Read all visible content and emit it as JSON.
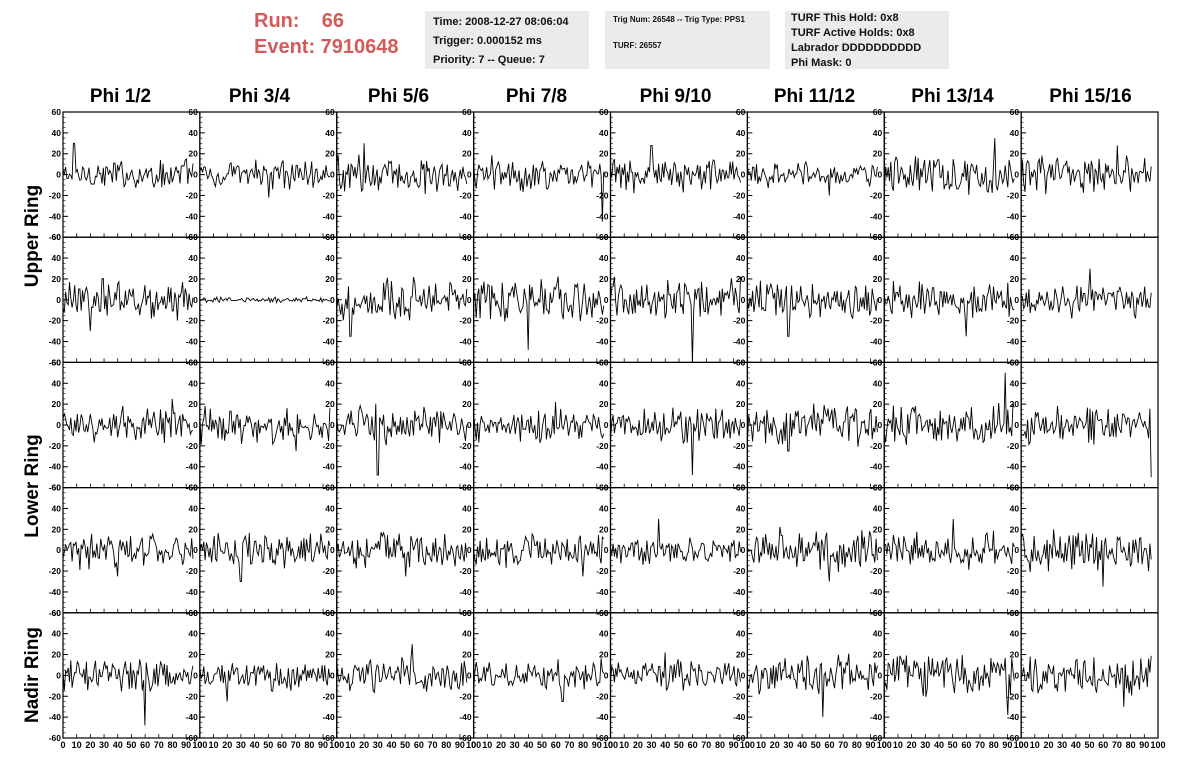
{
  "header": {
    "run_label": "Run:    66",
    "event_label": "Event: 7910648"
  },
  "info_time": {
    "time": "Time: 2008-12-27 08:06:04",
    "trigger": "Trigger: 0.000152 ms",
    "priority": "Priority: 7 -- Queue: 7"
  },
  "info_trig": {
    "trig": "Trig Num: 26548 -- Trig Type: PPS1",
    "turf": "TURF: 26557"
  },
  "info_turf": {
    "this_hold": "TURF This Hold: 0x8",
    "active_holds": "TURF Active Holds: 0x8",
    "labrador": "Labrador DDDDDDDDDD",
    "phi_mask": "Phi Mask: 0"
  },
  "columns": [
    "Phi 1/2",
    "Phi 3/4",
    "Phi 5/6",
    "Phi 7/8",
    "Phi 9/10",
    "Phi 11/12",
    "Phi 13/14",
    "Phi 15/16"
  ],
  "row_groups": [
    "Upper Ring",
    "Lower Ring",
    "Nadir Ring"
  ],
  "colors": {
    "run_text": "#d45a5a",
    "info_bg": "#ebebeb",
    "trace": "#000000"
  },
  "chart_data": {
    "type": "line",
    "description_grid": "5 rows x 8 columns of waveform panels",
    "xlim": [
      0,
      100
    ],
    "ylim": [
      -60,
      60
    ],
    "x_ticks": [
      0,
      10,
      20,
      30,
      40,
      50,
      60,
      70,
      80,
      90,
      100
    ],
    "x_tick_labels": [
      "0",
      "10",
      "20",
      "30",
      "40",
      "50",
      "60",
      "70",
      "80",
      "90",
      "100"
    ],
    "y_ticks": [
      -60,
      -40,
      -20,
      0,
      20,
      40,
      60
    ],
    "y_tick_labels": [
      "-60",
      "-40",
      "-20",
      "0",
      "20",
      "40",
      "60"
    ],
    "traces": [
      {
        "row": 0,
        "col": 0,
        "amplitude": 18,
        "spike": [
          8,
          30
        ]
      },
      {
        "row": 0,
        "col": 1,
        "amplitude": 16,
        "spike": [
          50,
          -22
        ]
      },
      {
        "row": 0,
        "col": 2,
        "amplitude": 22,
        "spike": [
          20,
          30
        ]
      },
      {
        "row": 0,
        "col": 3,
        "amplitude": 20,
        "spike": [
          94,
          -45
        ]
      },
      {
        "row": 0,
        "col": 4,
        "amplitude": 20,
        "spike": [
          30,
          28
        ]
      },
      {
        "row": 0,
        "col": 5,
        "amplitude": 15,
        "spike": [
          60,
          -20
        ]
      },
      {
        "row": 0,
        "col": 6,
        "amplitude": 22,
        "spike": [
          81,
          35
        ]
      },
      {
        "row": 0,
        "col": 7,
        "amplitude": 20,
        "spike": [
          70,
          28
        ]
      },
      {
        "row": 1,
        "col": 0,
        "amplitude": 22,
        "spike": [
          20,
          -30
        ]
      },
      {
        "row": 1,
        "col": 1,
        "amplitude": 3,
        "spike": [
          0,
          0
        ]
      },
      {
        "row": 1,
        "col": 2,
        "amplitude": 25,
        "spike": [
          10,
          -35
        ]
      },
      {
        "row": 1,
        "col": 3,
        "amplitude": 25,
        "spike": [
          40,
          -48
        ]
      },
      {
        "row": 1,
        "col": 4,
        "amplitude": 24,
        "spike": [
          60,
          -60
        ]
      },
      {
        "row": 1,
        "col": 5,
        "amplitude": 22,
        "spike": [
          30,
          -35
        ]
      },
      {
        "row": 1,
        "col": 6,
        "amplitude": 22,
        "spike": [
          60,
          -35
        ]
      },
      {
        "row": 1,
        "col": 7,
        "amplitude": 20,
        "spike": [
          50,
          30
        ]
      },
      {
        "row": 2,
        "col": 0,
        "amplitude": 20,
        "spike": [
          80,
          25
        ]
      },
      {
        "row": 2,
        "col": 1,
        "amplitude": 20,
        "spike": [
          70,
          -25
        ]
      },
      {
        "row": 2,
        "col": 2,
        "amplitude": 22,
        "spike": [
          30,
          -48
        ]
      },
      {
        "row": 2,
        "col": 3,
        "amplitude": 20,
        "spike": [
          60,
          22
        ]
      },
      {
        "row": 2,
        "col": 4,
        "amplitude": 20,
        "spike": [
          60,
          -48
        ]
      },
      {
        "row": 2,
        "col": 5,
        "amplitude": 22,
        "spike": [
          30,
          -25
        ]
      },
      {
        "row": 2,
        "col": 6,
        "amplitude": 24,
        "spike": [
          88,
          50
        ]
      },
      {
        "row": 2,
        "col": 7,
        "amplitude": 22,
        "spike": [
          95,
          -50
        ]
      },
      {
        "row": 3,
        "col": 0,
        "amplitude": 20,
        "spike": [
          40,
          -25
        ]
      },
      {
        "row": 3,
        "col": 1,
        "amplitude": 20,
        "spike": [
          30,
          -30
        ]
      },
      {
        "row": 3,
        "col": 2,
        "amplitude": 20,
        "spike": [
          50,
          -25
        ]
      },
      {
        "row": 3,
        "col": 3,
        "amplitude": 18,
        "spike": [
          80,
          -25
        ]
      },
      {
        "row": 3,
        "col": 4,
        "amplitude": 15,
        "spike": [
          35,
          30
        ]
      },
      {
        "row": 3,
        "col": 5,
        "amplitude": 24,
        "spike": [
          60,
          -30
        ]
      },
      {
        "row": 3,
        "col": 6,
        "amplitude": 20,
        "spike": [
          50,
          30
        ]
      },
      {
        "row": 3,
        "col": 7,
        "amplitude": 24,
        "spike": [
          60,
          -35
        ]
      },
      {
        "row": 4,
        "col": 0,
        "amplitude": 18,
        "spike": [
          60,
          -48
        ]
      },
      {
        "row": 4,
        "col": 1,
        "amplitude": 16,
        "spike": [
          20,
          -25
        ]
      },
      {
        "row": 4,
        "col": 2,
        "amplitude": 18,
        "spike": [
          55,
          30
        ]
      },
      {
        "row": 4,
        "col": 3,
        "amplitude": 18,
        "spike": [
          65,
          -25
        ]
      },
      {
        "row": 4,
        "col": 4,
        "amplitude": 16,
        "spike": [
          40,
          22
        ]
      },
      {
        "row": 4,
        "col": 5,
        "amplitude": 22,
        "spike": [
          55,
          -40
        ]
      },
      {
        "row": 4,
        "col": 6,
        "amplitude": 24,
        "spike": [
          90,
          -38
        ]
      },
      {
        "row": 4,
        "col": 7,
        "amplitude": 20,
        "spike": [
          75,
          -30
        ]
      }
    ]
  }
}
